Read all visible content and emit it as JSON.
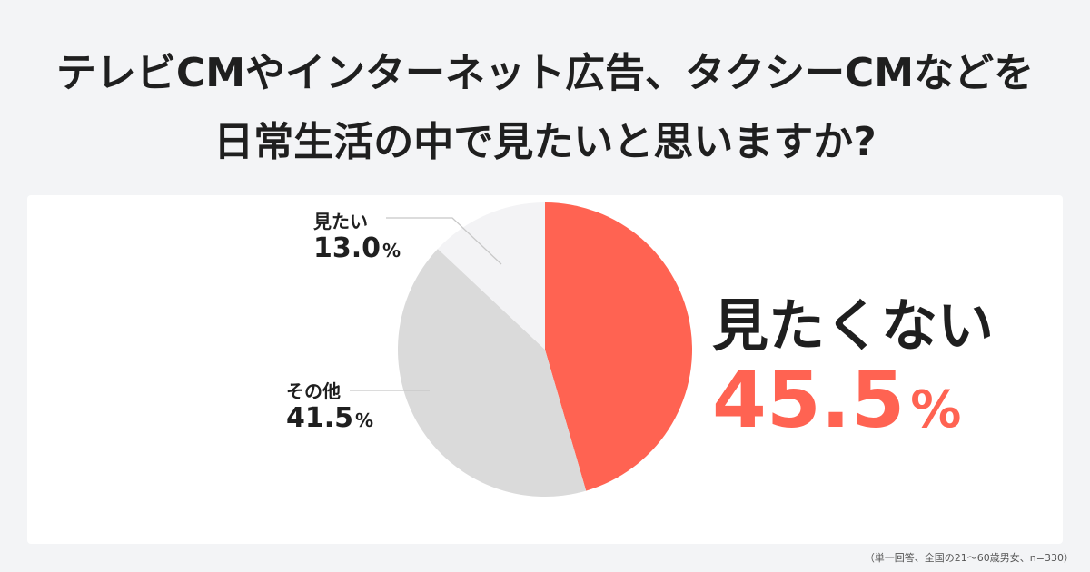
{
  "title": {
    "line1": "テレビCMやインターネット広告、タクシーCMなどを",
    "line2": "日常生活の中で見たいと思いますか?"
  },
  "chart_data": {
    "type": "pie",
    "slices": [
      {
        "label": "見たくない",
        "value": 45.5,
        "display": "45.5",
        "color": "#ff6352"
      },
      {
        "label": "その他",
        "value": 41.5,
        "display": "41.5",
        "color": "#dadada"
      },
      {
        "label": "見たい",
        "value": 13.0,
        "display": "13.0",
        "color": "#f3f3f5"
      }
    ],
    "unit": "%",
    "start_angle_deg": 0,
    "direction": "clockwise"
  },
  "footnote": "（単一回答、全国の21～60歳男女、n=330）"
}
